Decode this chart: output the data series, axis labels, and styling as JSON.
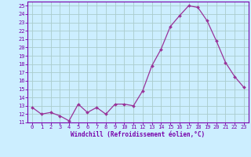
{
  "x": [
    0,
    1,
    2,
    3,
    4,
    5,
    6,
    7,
    8,
    9,
    10,
    11,
    12,
    13,
    14,
    15,
    16,
    17,
    18,
    19,
    20,
    21,
    22,
    23
  ],
  "y": [
    12.8,
    12.0,
    12.2,
    11.8,
    11.2,
    13.2,
    12.2,
    12.8,
    12.0,
    13.2,
    13.2,
    13.0,
    14.8,
    17.8,
    19.8,
    22.5,
    23.8,
    25.0,
    24.8,
    23.2,
    20.8,
    18.2,
    16.5,
    15.2
  ],
  "line_color": "#993399",
  "marker_color": "#993399",
  "bg_color": "#cceeff",
  "grid_color": "#aacccc",
  "xlabel": "Windchill (Refroidissement éolien,°C)",
  "xlabel_color": "#7700aa",
  "ylim": [
    11,
    25.5
  ],
  "xlim": [
    -0.5,
    23.5
  ],
  "yticks": [
    11,
    12,
    13,
    14,
    15,
    16,
    17,
    18,
    19,
    20,
    21,
    22,
    23,
    24,
    25
  ],
  "xticks": [
    0,
    1,
    2,
    3,
    4,
    5,
    6,
    7,
    8,
    9,
    10,
    11,
    12,
    13,
    14,
    15,
    16,
    17,
    18,
    19,
    20,
    21,
    22,
    23
  ],
  "tick_color": "#7700aa",
  "spine_color": "#7700aa",
  "tick_fontsize": 5.0,
  "xlabel_fontsize": 5.5
}
